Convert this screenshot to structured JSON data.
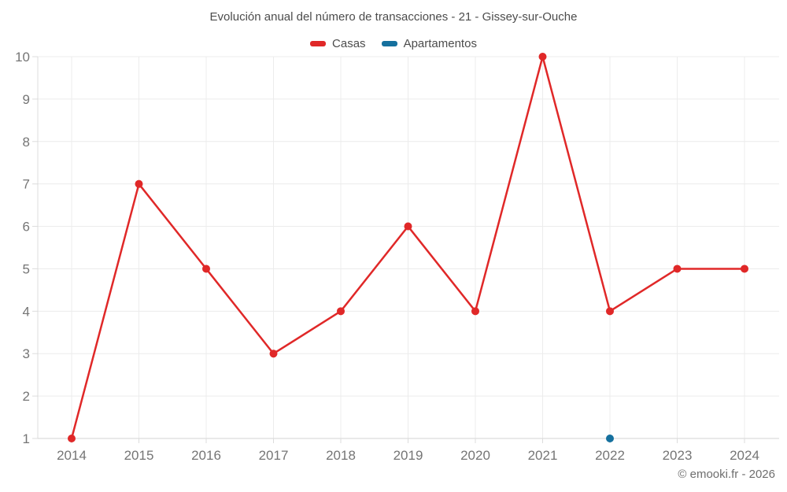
{
  "chart": {
    "title": "Evolución anual del número de transacciones - 21 - Gissey-sur-Ouche",
    "copyright": "© emooki.fr - 2026"
  },
  "chart_data": {
    "type": "line",
    "title": "Evolución anual del número de transacciones - 21 - Gissey-sur-Ouche",
    "x": [
      2014,
      2015,
      2016,
      2017,
      2018,
      2019,
      2020,
      2021,
      2022,
      2023,
      2024
    ],
    "series": [
      {
        "name": "Casas",
        "color": "#e02828",
        "points": [
          [
            2014,
            1
          ],
          [
            2015,
            7
          ],
          [
            2016,
            5
          ],
          [
            2017,
            3
          ],
          [
            2018,
            4
          ],
          [
            2019,
            6
          ],
          [
            2020,
            4
          ],
          [
            2021,
            10
          ],
          [
            2022,
            4
          ],
          [
            2023,
            5
          ],
          [
            2024,
            5
          ]
        ]
      },
      {
        "name": "Apartamentos",
        "color": "#15709e",
        "points": [
          [
            2022,
            1
          ]
        ]
      }
    ],
    "xlabel": "",
    "ylabel": "",
    "ylim": [
      1,
      10
    ],
    "yticks": [
      1,
      2,
      3,
      4,
      5,
      6,
      7,
      8,
      9,
      10
    ],
    "grid": true,
    "legend_position": "top",
    "tick_label_color": "#757575",
    "grid_color": "#ececec",
    "axis_line_color": "#dcdcdc"
  }
}
